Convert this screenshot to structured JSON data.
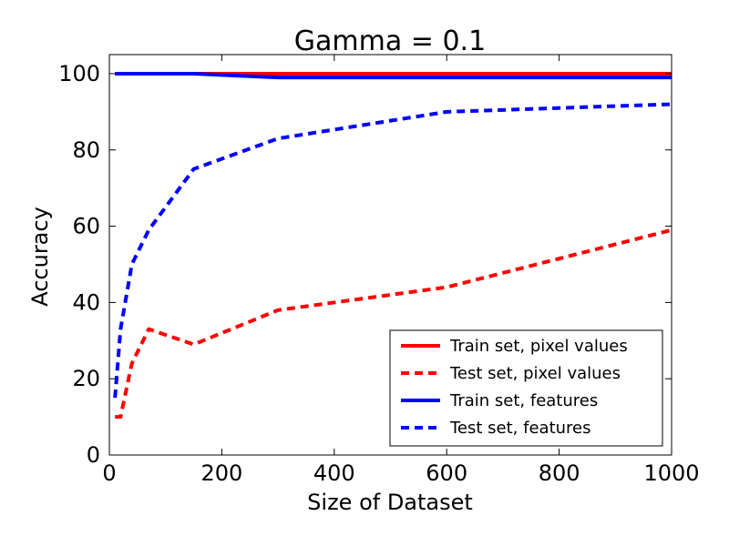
{
  "chart_data": {
    "type": "line",
    "title": "Gamma = 0.1",
    "xlabel": "Size of Dataset",
    "ylabel": "Accuracy",
    "xlim": [
      0,
      1000
    ],
    "ylim": [
      0,
      105
    ],
    "xticks": [
      0,
      200,
      400,
      600,
      800,
      1000
    ],
    "yticks": [
      0,
      20,
      40,
      60,
      80,
      100
    ],
    "grid": false,
    "legend_position": "lower-right",
    "series": [
      {
        "name": "Train set, pixel values",
        "color": "#ff0000",
        "style": "solid",
        "x": [
          10,
          20,
          40,
          70,
          150,
          300,
          600,
          1000
        ],
        "y": [
          100,
          100,
          100,
          100,
          100,
          100,
          100,
          100
        ]
      },
      {
        "name": "Test set, pixel values",
        "color": "#ff0000",
        "style": "dashed",
        "x": [
          10,
          20,
          40,
          70,
          150,
          300,
          600,
          1000
        ],
        "y": [
          10,
          10,
          24,
          33,
          29,
          38,
          44,
          59
        ]
      },
      {
        "name": "Train set, features",
        "color": "#0000ff",
        "style": "solid",
        "x": [
          10,
          20,
          40,
          70,
          150,
          300,
          600,
          1000
        ],
        "y": [
          100,
          100,
          100,
          100,
          100,
          99,
          99,
          99
        ]
      },
      {
        "name": "Test set, features",
        "color": "#0000ff",
        "style": "dashed",
        "x": [
          10,
          20,
          40,
          70,
          150,
          300,
          600,
          1000
        ],
        "y": [
          15,
          33,
          50,
          59,
          75,
          83,
          90,
          92
        ]
      }
    ]
  }
}
